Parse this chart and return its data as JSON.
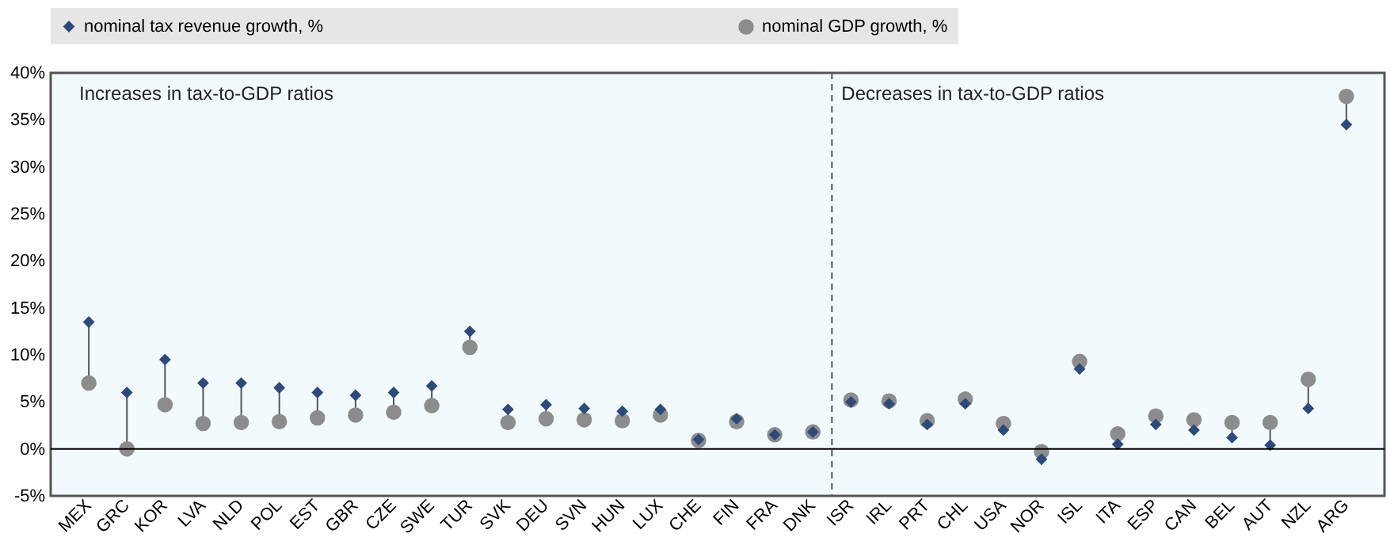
{
  "chart_data": {
    "type": "scatter",
    "categories": [
      "MEX",
      "GRC",
      "KOR",
      "LVA",
      "NLD",
      "POL",
      "EST",
      "GBR",
      "CZE",
      "SWE",
      "TUR",
      "SVK",
      "DEU",
      "SVN",
      "HUN",
      "LUX",
      "CHE",
      "FIN",
      "FRA",
      "DNK",
      "ISR",
      "IRL",
      "PRT",
      "CHL",
      "USA",
      "NOR",
      "ISL",
      "ITA",
      "ESP",
      "CAN",
      "BEL",
      "AUT",
      "NZL",
      "ARG"
    ],
    "series": [
      {
        "name": "nominal tax revenue growth, %",
        "color": "#2e4a7a",
        "marker": "diamond",
        "values": [
          13.5,
          6,
          9.5,
          7,
          7,
          6.5,
          6,
          5.7,
          6,
          6.7,
          12.5,
          4.2,
          4.7,
          4.3,
          4,
          4.2,
          1,
          3.2,
          1.5,
          1.8,
          5,
          4.8,
          2.6,
          4.8,
          2,
          -1.1,
          8.5,
          0.5,
          2.6,
          2,
          1.2,
          0.4,
          4.3,
          34.5
        ]
      },
      {
        "name": "nominal GDP growth, %",
        "color": "#8c8c8c",
        "marker": "circle",
        "values": [
          7,
          0,
          4.7,
          2.7,
          2.8,
          2.9,
          3.3,
          3.6,
          3.9,
          4.6,
          10.8,
          2.8,
          3.2,
          3.1,
          3,
          3.6,
          0.9,
          2.9,
          1.5,
          1.8,
          5.2,
          5.1,
          3,
          5.3,
          2.7,
          -0.3,
          9.3,
          1.6,
          3.5,
          3.1,
          2.8,
          2.8,
          7.4,
          37.5
        ]
      }
    ],
    "ylim": [
      -5,
      40
    ],
    "yticks": [
      {
        "value": -5,
        "label": "-5%"
      },
      {
        "value": 0,
        "label": "0%"
      },
      {
        "value": 5,
        "label": "5%"
      },
      {
        "value": 10,
        "label": "10%"
      },
      {
        "value": 15,
        "label": "15%"
      },
      {
        "value": 20,
        "label": "20%"
      },
      {
        "value": 25,
        "label": "25%"
      },
      {
        "value": 30,
        "label": "30%"
      },
      {
        "value": 35,
        "label": "35%"
      },
      {
        "value": 40,
        "label": "40%"
      }
    ],
    "ref_lines": [
      {
        "axis": "x",
        "value": "ISR",
        "line_style": "dashed",
        "color": "#555555"
      },
      {
        "axis": "y",
        "value": 0,
        "line_style": "solid",
        "color": "#000000"
      }
    ],
    "annotations": [
      "Increases in tax-to-GDP ratios",
      "Decreases in tax-to-GDP ratios"
    ],
    "legend": "top",
    "grid": false
  }
}
